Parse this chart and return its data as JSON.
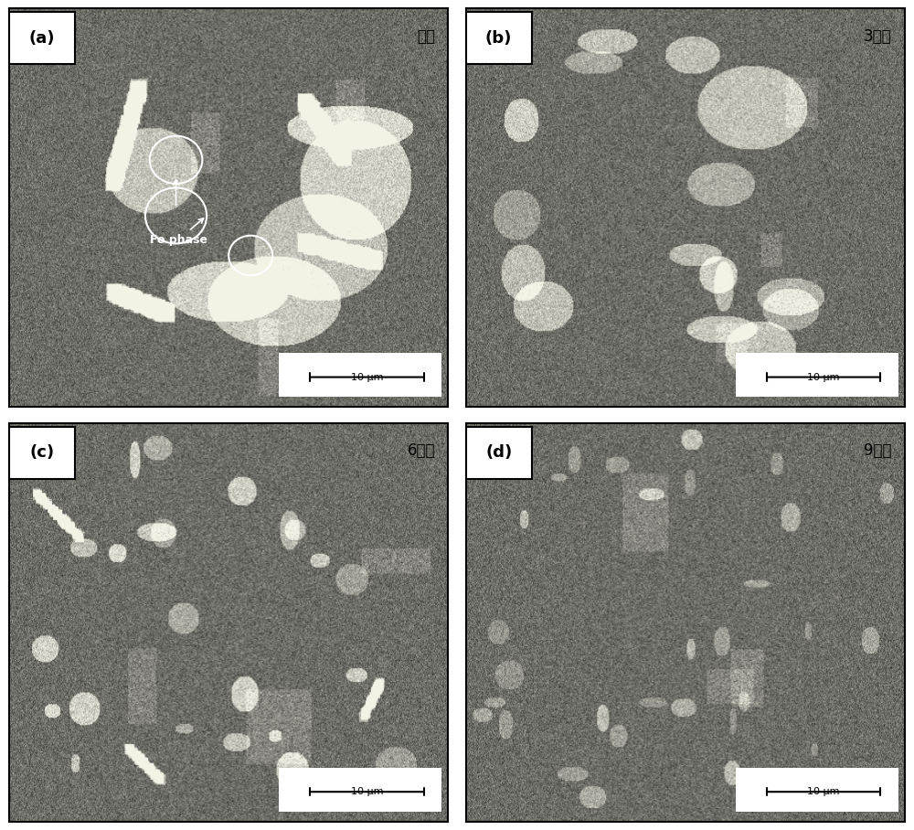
{
  "figure_size": [
    10.0,
    9.08
  ],
  "dpi": 100,
  "background_color": "#ffffff",
  "panels": [
    {
      "label": "(a)",
      "title": "铸态",
      "row": 0,
      "col": 0
    },
    {
      "label": "(b)",
      "title": "3道次",
      "row": 0,
      "col": 1
    },
    {
      "label": "(c)",
      "title": "6道次",
      "row": 1,
      "col": 0
    },
    {
      "label": "(d)",
      "title": "9道次",
      "row": 1,
      "col": 1
    }
  ],
  "scale_bar_text": "10 μm",
  "fe_phase_label": "Fe phase",
  "outer_border_color": "#000000",
  "label_box_color": "#ffffff",
  "label_text_color": "#000000",
  "title_text_color": "#000000",
  "scale_bar_bg": "#ffffff",
  "panel_bg_color": "#808080",
  "gap_color": "#ffffff",
  "hspace": 0.04,
  "wspace": 0.04
}
